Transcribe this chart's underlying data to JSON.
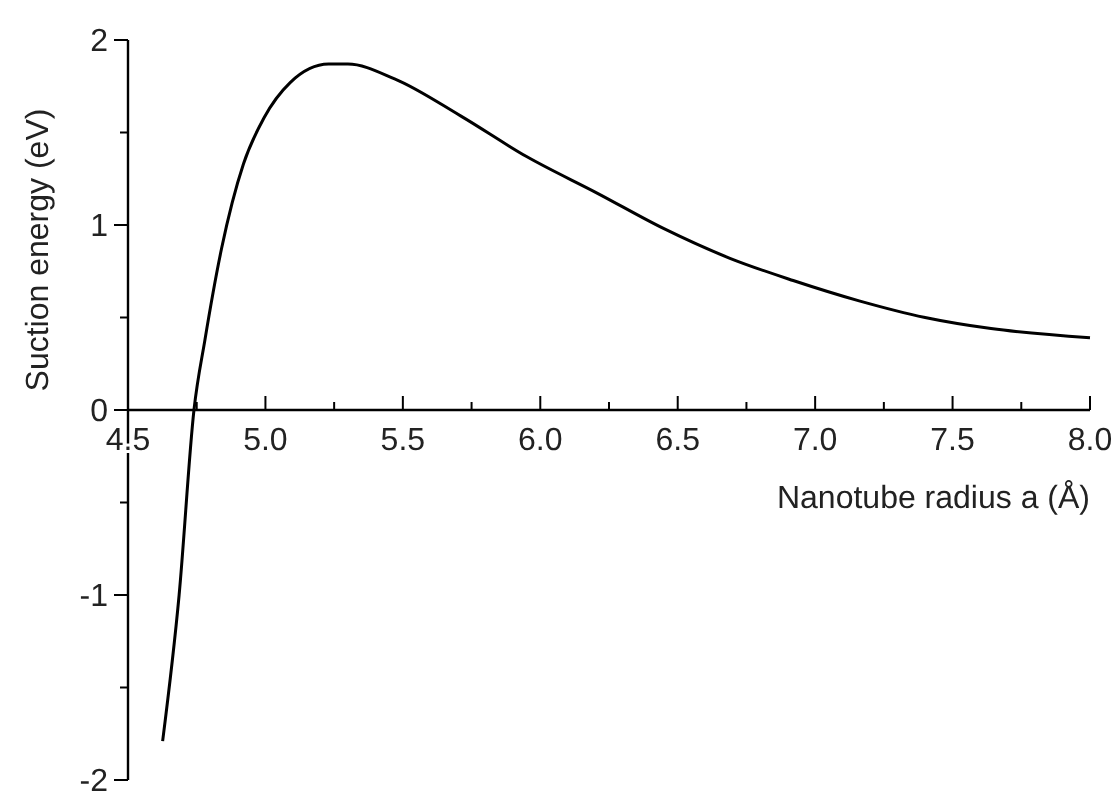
{
  "chart_data": {
    "type": "line",
    "xlabel": "Nanotube radius a (Å)",
    "ylabel": "Suction energy (eV)",
    "x": [
      4.626,
      4.686,
      4.74,
      4.78,
      4.84,
      4.92,
      4.995,
      5.09,
      5.23,
      5.3,
      5.47,
      5.71,
      5.95,
      6.21,
      6.45,
      6.69,
      6.92,
      7.16,
      7.4,
      7.64,
      8.0
    ],
    "series": [
      {
        "color": "#000000",
        "values": [
          -1.79,
          -1.0,
          0,
          0.38,
          0.87,
          1.33,
          1.58,
          1.77,
          1.87,
          1.87,
          1.79,
          1.59,
          1.37,
          1.17,
          0.98,
          0.82,
          0.7,
          0.59,
          0.5,
          0.44,
          0.39
        ]
      }
    ],
    "xlim": [
      4.5,
      8.0
    ],
    "ylim": [
      -2,
      2
    ],
    "xticks": [
      4.5,
      {
        "value": 4.75,
        "label": null
      },
      "5.0",
      {
        "value": 5.25,
        "label": null
      },
      5.5,
      {
        "value": 5.75,
        "label": null
      },
      "6.0",
      {
        "value": 6.25,
        "label": null
      },
      6.5,
      {
        "value": 6.75,
        "label": null
      },
      "7.0",
      {
        "value": 7.25,
        "label": null
      },
      7.5,
      {
        "value": 7.75,
        "label": null
      },
      "8.0"
    ],
    "yticks": [
      -2,
      {
        "value": -1.5,
        "label": null
      },
      -1,
      {
        "value": -0.5,
        "label": null
      },
      0,
      {
        "value": 0.5,
        "label": null
      },
      1,
      {
        "value": 1.5,
        "label": null
      },
      2
    ],
    "grid": false,
    "marker": "none",
    "line_style": "solid"
  }
}
